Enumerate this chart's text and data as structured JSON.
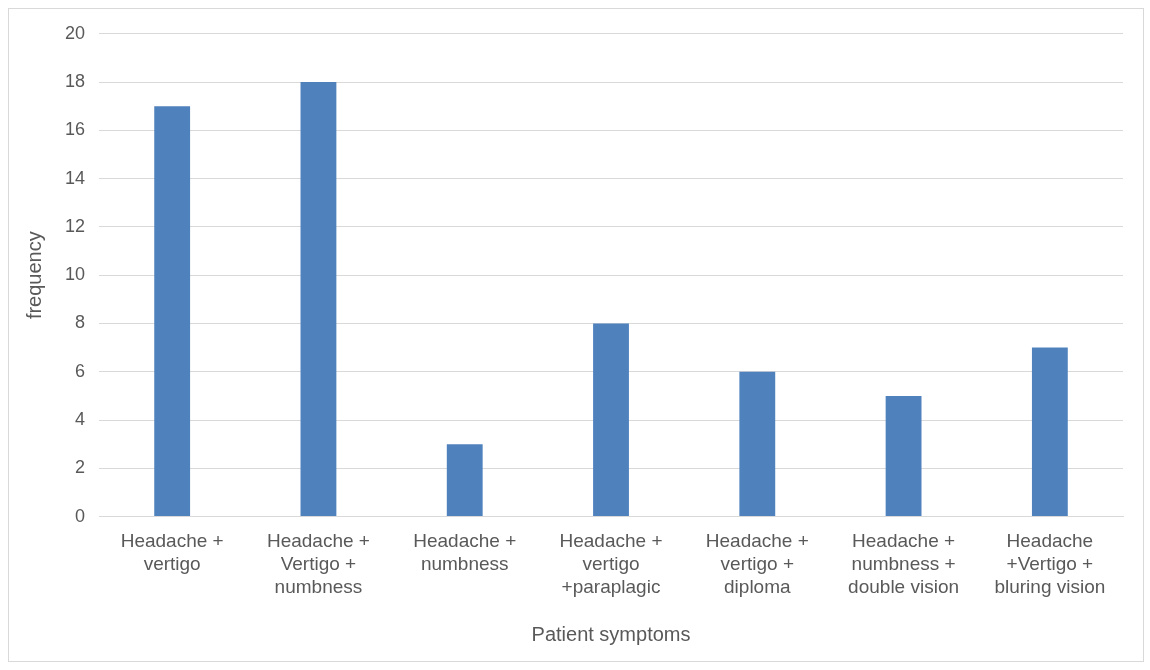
{
  "chart_data": {
    "type": "bar",
    "xlabel": "Patient symptoms",
    "ylabel": "frequency",
    "categories": [
      "Headache + vertigo",
      "Headache + Vertigo + numbness",
      "Headache + numbness",
      "Headache + vertigo +paraplagic",
      "Headache + vertigo + diploma",
      "Headache + numbness + double vision",
      "Headache +Vertigo + bluring vision"
    ],
    "values": [
      17,
      18,
      3,
      8,
      6,
      5,
      7
    ],
    "color": "#4f81bd",
    "ylim": [
      0,
      20
    ],
    "yticks": [
      0,
      2,
      4,
      6,
      8,
      10,
      12,
      14,
      16,
      18,
      20
    ],
    "grid": "y",
    "legend": false
  }
}
